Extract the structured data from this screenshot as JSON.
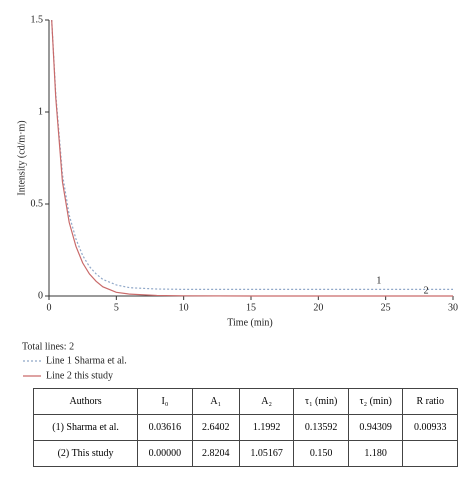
{
  "chart_data": {
    "type": "line",
    "xlabel": "Time (min)",
    "ylabel": "Intensity (cd/m·m)",
    "x": [
      0.2,
      0.5,
      1,
      1.5,
      2,
      2.5,
      3,
      3.5,
      4,
      5,
      6,
      8,
      10,
      15,
      20,
      25,
      30
    ],
    "series": [
      {
        "name": "Line 1 Sharma et al.",
        "color": "#8fa7c8",
        "style": "dotted",
        "values": [
          1.5,
          1.1,
          0.66,
          0.44,
          0.31,
          0.22,
          0.16,
          0.12,
          0.09,
          0.06,
          0.045,
          0.038,
          0.036,
          0.036,
          0.036,
          0.036,
          0.036
        ]
      },
      {
        "name": "Line 2 this study",
        "color": "#c96a6a",
        "style": "solid",
        "values": [
          1.5,
          1.08,
          0.62,
          0.4,
          0.27,
          0.18,
          0.12,
          0.08,
          0.05,
          0.02,
          0.01,
          0.003,
          0.001,
          0,
          0,
          0,
          0
        ]
      }
    ],
    "legend_title": "Total lines: 2",
    "annotations": [
      {
        "text": "1",
        "x": 24.5,
        "y": 0.08
      },
      {
        "text": "2",
        "x": 28,
        "y": 0.025
      }
    ],
    "xlim": [
      0,
      30
    ],
    "xticks": [
      0,
      5,
      10,
      15,
      20,
      25,
      30
    ],
    "ylim": [
      0,
      1.5
    ],
    "yticks": [
      0,
      0.5,
      1,
      1.5
    ]
  },
  "table": {
    "header": [
      "Authors",
      "I₀",
      "A₁",
      "A₂",
      "τ₁ (min)",
      "τ₂ (min)",
      "R ratio"
    ],
    "rows": [
      [
        "(1) Sharma et al.",
        "0.03616",
        "2.6402",
        "1.1992",
        "0.13592",
        "0.94309",
        "0.00933"
      ],
      [
        "(2) This study",
        "0.00000",
        "2.8204",
        "1.05167",
        "0.150",
        "1.180",
        null
      ]
    ]
  }
}
